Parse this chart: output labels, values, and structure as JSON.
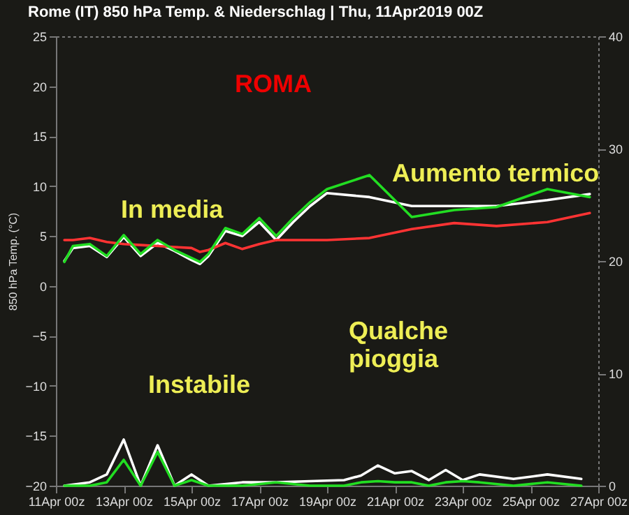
{
  "chart_data": {
    "type": "line",
    "title": "Rome  (IT)  850 hPa Temp. & Niederschlag | Thu, 11Apr2019 00Z",
    "ylabel": "850 hPa Temp. (°C)",
    "annotations": [
      "ROMA",
      "In media",
      "Aumento termico",
      "Instabile",
      "Qualche pioggia"
    ],
    "x": [
      "2019-04-11T06:00",
      "2019-04-11T12:00",
      "2019-04-12T00:00",
      "2019-04-12T12:00",
      "2019-04-13T00:00",
      "2019-04-13T12:00",
      "2019-04-14T00:00",
      "2019-04-14T12:00",
      "2019-04-15T00:00",
      "2019-04-15T06:00",
      "2019-04-15T12:00",
      "2019-04-16T00:00",
      "2019-04-16T12:00",
      "2019-04-17T00:00",
      "2019-04-17T12:00",
      "2019-04-18T00:00",
      "2019-04-18T12:00",
      "2019-04-19T00:00",
      "2019-04-20T06:00",
      "2019-04-21T12:00",
      "2019-04-22T18:00",
      "2019-04-24T00:00",
      "2019-04-25T12:00",
      "2019-04-26T18:00"
    ],
    "series": [
      {
        "color": "#ffffff",
        "values": [
          2.5,
          3.8,
          4.0,
          2.9,
          4.9,
          3.0,
          4.3,
          3.5,
          2.6,
          2.2,
          3.0,
          5.5,
          5.0,
          6.4,
          4.6,
          6.4,
          8.0,
          9.3,
          8.9,
          8.0,
          8.0,
          8.0,
          8.6,
          9.2
        ]
      },
      {
        "color": "#ff3333",
        "values": [
          4.6,
          4.6,
          4.8,
          4.4,
          4.2,
          4.1,
          4.0,
          3.9,
          3.8,
          3.4,
          3.6,
          4.3,
          3.7,
          4.2,
          4.6,
          4.6,
          4.6,
          4.6,
          4.8,
          5.7,
          6.3,
          6.0,
          6.4,
          7.3
        ]
      },
      {
        "color": "#22dd22",
        "values": [
          2.4,
          4.0,
          4.2,
          3.0,
          5.1,
          3.2,
          4.6,
          3.6,
          2.8,
          2.4,
          3.2,
          5.8,
          5.2,
          6.8,
          5.0,
          6.8,
          8.4,
          9.7,
          11.1,
          6.9,
          7.6,
          7.9,
          9.7,
          8.9
        ]
      },
      {
        "color": "#ffffff",
        "axis": "y2",
        "x": [
          "2019-04-11T06:00",
          "2019-04-12T00:00",
          "2019-04-12T12:00",
          "2019-04-13T00:00",
          "2019-04-13T12:00",
          "2019-04-14T00:00",
          "2019-04-14T12:00",
          "2019-04-15T00:00",
          "2019-04-15T12:00",
          "2019-04-16T12:00",
          "2019-04-17T12:00",
          "2019-04-18T12:00",
          "2019-04-19T12:00",
          "2019-04-20T00:00",
          "2019-04-20T12:00",
          "2019-04-21T00:00",
          "2019-04-21T12:00",
          "2019-04-22T00:00",
          "2019-04-22T12:00",
          "2019-04-23T00:00",
          "2019-04-23T12:00",
          "2019-04-24T12:00",
          "2019-04-25T12:00",
          "2019-04-26T12:00"
        ],
        "values": [
          0,
          0.3,
          1.0,
          4.1,
          0,
          3.6,
          0,
          1.0,
          0,
          0.3,
          0.3,
          0.4,
          0.5,
          0.9,
          1.8,
          1.1,
          1.3,
          0.5,
          1.4,
          0.5,
          1.0,
          0.6,
          1.0,
          0.6
        ]
      },
      {
        "color": "#22dd22",
        "axis": "y2",
        "x": [
          "2019-04-11T06:00",
          "2019-04-12T00:00",
          "2019-04-12T12:00",
          "2019-04-13T00:00",
          "2019-04-13T12:00",
          "2019-04-14T00:00",
          "2019-04-14T12:00",
          "2019-04-15T00:00",
          "2019-04-15T12:00",
          "2019-04-16T12:00",
          "2019-04-17T12:00",
          "2019-04-18T12:00",
          "2019-04-19T12:00",
          "2019-04-20T00:00",
          "2019-04-20T12:00",
          "2019-04-21T00:00",
          "2019-04-21T12:00",
          "2019-04-22T00:00",
          "2019-04-22T12:00",
          "2019-04-23T00:00",
          "2019-04-23T12:00",
          "2019-04-24T12:00",
          "2019-04-25T12:00",
          "2019-04-26T12:00"
        ],
        "values": [
          0,
          0,
          0.3,
          2.3,
          0,
          3.0,
          0,
          0.5,
          0,
          0,
          0.3,
          0,
          0,
          0.3,
          0.4,
          0.3,
          0.3,
          0,
          0.3,
          0.4,
          0.3,
          0,
          0.3,
          0
        ]
      }
    ],
    "xlim": [
      "2019-04-11T00:00",
      "2019-04-27T00:00"
    ],
    "xticks": [
      {
        "value": "2019-04-11T00:00",
        "label": "11Apr 00z"
      },
      {
        "value": "2019-04-13T00:00",
        "label": "13Apr 00z"
      },
      {
        "value": "2019-04-15T00:00",
        "label": "15Apr 00z"
      },
      {
        "value": "2019-04-17T00:00",
        "label": "17Apr 00z"
      },
      {
        "value": "2019-04-19T00:00",
        "label": "19Apr 00z"
      },
      {
        "value": "2019-04-21T00:00",
        "label": "21Apr 00z"
      },
      {
        "value": "2019-04-23T00:00",
        "label": "23Apr 00z"
      },
      {
        "value": "2019-04-25T00:00",
        "label": "25Apr 00z"
      },
      {
        "value": "2019-04-27T00:00",
        "label": "27Apr 00z"
      }
    ],
    "ylim": [
      -20,
      25
    ],
    "yticks": [
      -20,
      -15,
      -10,
      -5,
      0,
      5,
      10,
      15,
      20,
      25
    ],
    "y2lim": [
      0,
      40
    ],
    "y2ticks": [
      0,
      10,
      20,
      30,
      40
    ],
    "grid": false,
    "legend": false,
    "line_style": "solid",
    "marker": "none"
  }
}
